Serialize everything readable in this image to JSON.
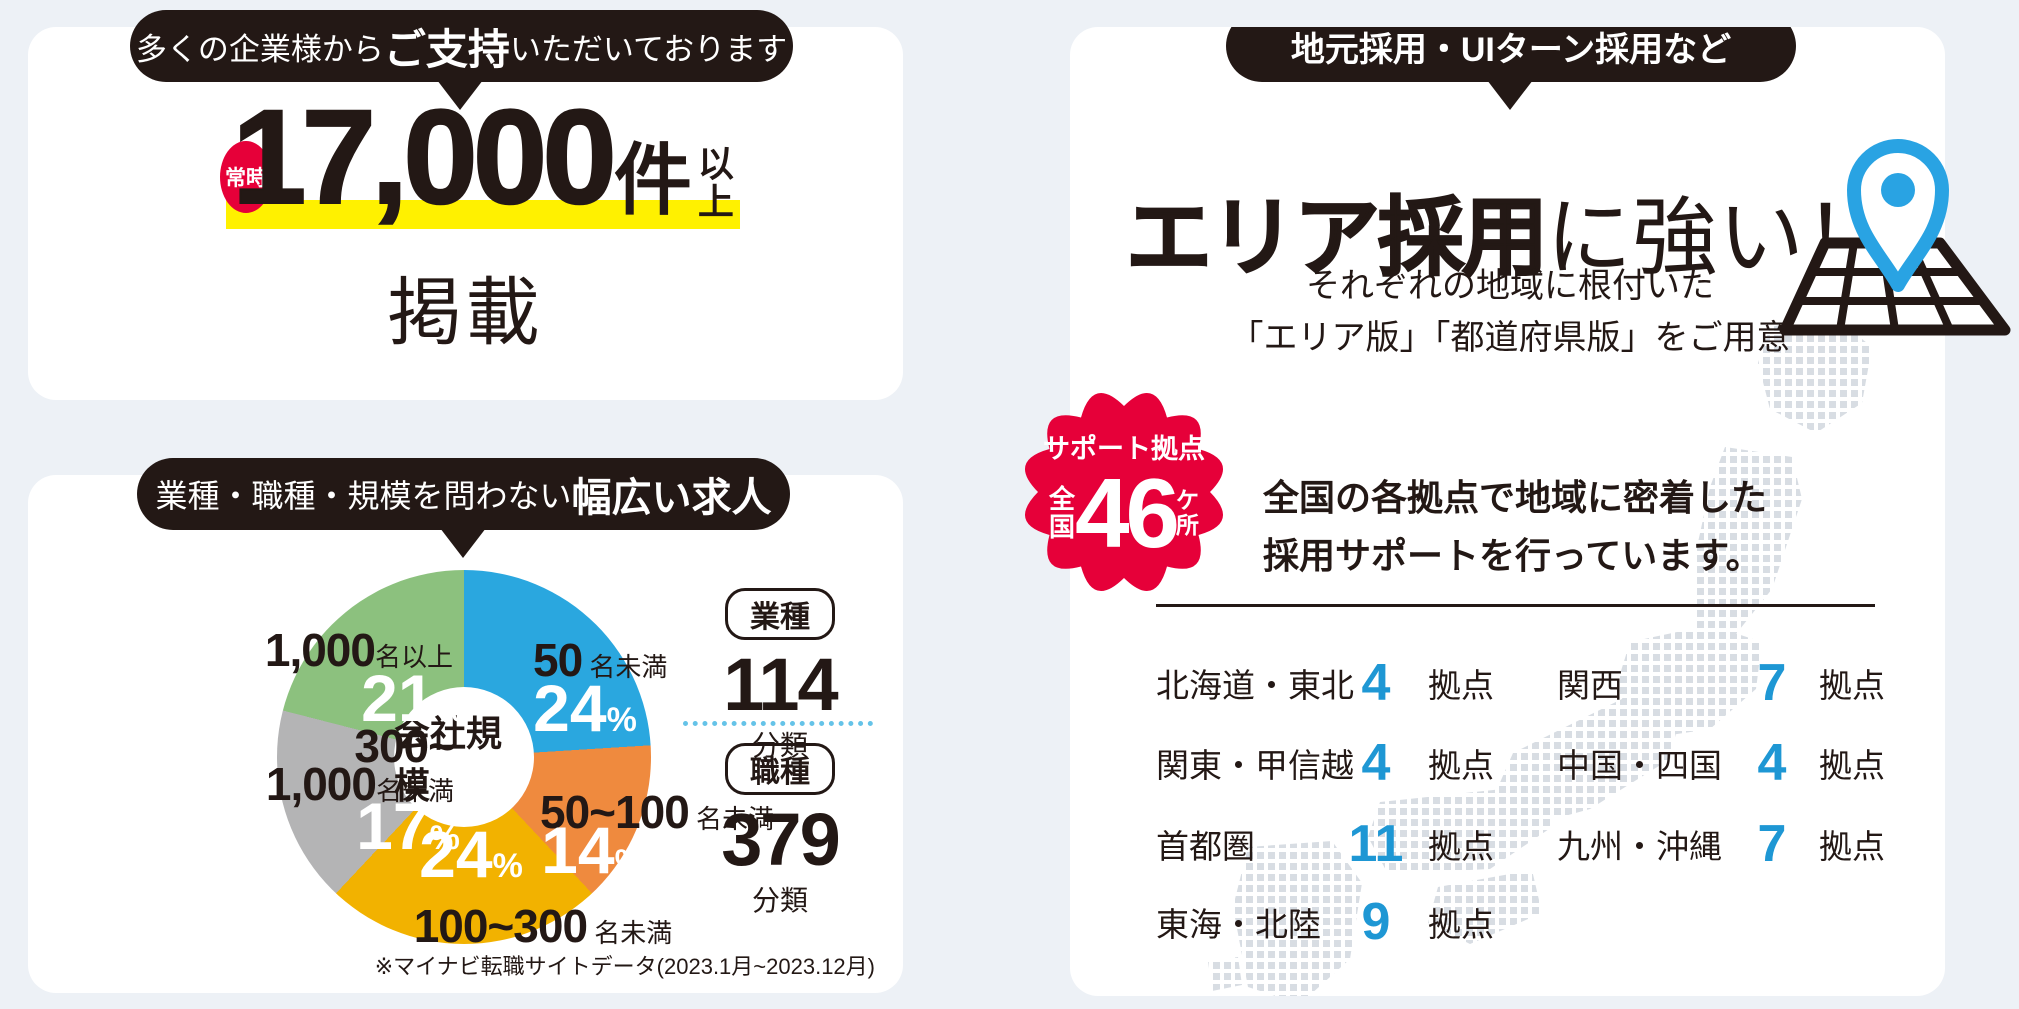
{
  "colors": {
    "ink": "#231815",
    "background": "#edf1f6",
    "accent_red": "#e60039",
    "highlight_yellow": "#fff100",
    "accent_blue": "#1e97d4",
    "pin_blue": "#29a3e3"
  },
  "card_listings": {
    "bubble_pre": "多くの企業様から",
    "bubble_em": "ご支持",
    "bubble_post": "いただいております",
    "badge": "常時",
    "count": "17,000",
    "count_unit": "件",
    "count_suffix_top": "以",
    "count_suffix_bottom": "上",
    "caption": "掲載"
  },
  "card_chart": {
    "bubble_pre": "業種・職種・規模を問わない",
    "bubble_em": "幅広い求人",
    "center_label": "会社規模",
    "industry_label": "業種",
    "industry_value": "114",
    "industry_unit": "分類",
    "occupation_label": "職種",
    "occupation_value": "379",
    "occupation_unit": "分類",
    "source_note": "※マイナビ転職サイトデータ(2023.1月~2023.12月)"
  },
  "chart_data": {
    "type": "pie",
    "title": "会社規模",
    "categories": [
      "50名未満",
      "50~100名未満",
      "100~300名未満",
      "300~1,000名未満",
      "1,000名以上"
    ],
    "values": [
      24,
      14,
      24,
      17,
      21
    ],
    "unit": "%",
    "colors": [
      "#2aa7df",
      "#ef8a3e",
      "#f2b200",
      "#b4b4b5",
      "#8cc17e"
    ],
    "legend_position": "on-chart",
    "pct_unit": "%",
    "labels": [
      {
        "strong": "50",
        "small": "名未満",
        "pct": "24"
      },
      {
        "strong": "50~100",
        "small": "名未満",
        "pct": "14"
      },
      {
        "strong": "100~300",
        "small": "名未満",
        "pct": "24"
      },
      {
        "strong": "300~",
        "strong2": "1,000",
        "small": "名未満",
        "pct": "17"
      },
      {
        "strong": "1,000",
        "small": "名以上",
        "pct": "21"
      }
    ]
  },
  "card_area": {
    "bubble": "地元採用・UIターン採用など",
    "heading_em": "エリア採用",
    "heading_rest": "に強い！",
    "sub_line1": "それぞれの地域に根付いた",
    "sub_line2": "「エリア版」「都道府県版」をご用意",
    "badge_top": "サポート拠点",
    "badge_left_top": "全",
    "badge_left_bottom": "国",
    "badge_value": "46",
    "badge_right_top": "ケ",
    "badge_right_bottom": "所",
    "desc_line1": "全国の各拠点で地域に密着した",
    "desc_line2": "採用サポートを行っています。",
    "unit": "拠点",
    "regions": [
      {
        "name": "北海道・東北",
        "value": "4"
      },
      {
        "name": "関東・甲信越",
        "value": "4"
      },
      {
        "name": "首都圏",
        "value": "11"
      },
      {
        "name": "東海・北陸",
        "value": "9"
      },
      {
        "name": "関西",
        "value": "7"
      },
      {
        "name": "中国・四国",
        "value": "4"
      },
      {
        "name": "九州・沖縄",
        "value": "7"
      }
    ]
  }
}
